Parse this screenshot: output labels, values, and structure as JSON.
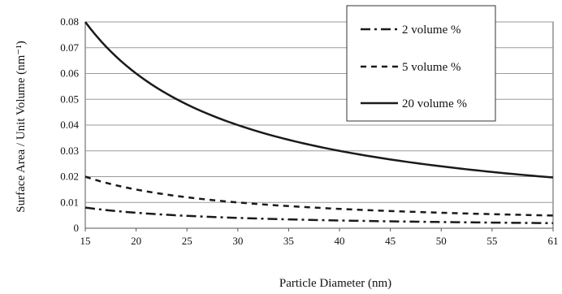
{
  "chart_data": {
    "type": "line",
    "xlabel": "Particle Diameter (nm)",
    "ylabel": "Surface Area / Unit Volume (nm⁻¹)",
    "x_ticks": [
      "15",
      "20",
      "25",
      "30",
      "35",
      "40",
      "45",
      "50",
      "55",
      "61"
    ],
    "y_ticks": [
      "0",
      "0.01",
      "0.02",
      "0.03",
      "0.04",
      "0.05",
      "0.06",
      "0.07",
      "0.08"
    ],
    "xlim": [
      15,
      61
    ],
    "ylim": [
      0,
      0.08
    ],
    "grid": "horizontal",
    "legend_position": "top-right",
    "x": [
      15,
      20,
      25,
      30,
      35,
      40,
      45,
      50,
      55,
      61
    ],
    "series": [
      {
        "name": "2 volume %",
        "style": "dash-dot",
        "values": [
          0.008,
          0.006,
          0.0048,
          0.004,
          0.00343,
          0.003,
          0.00267,
          0.0024,
          0.00218,
          0.00197
        ]
      },
      {
        "name": "5 volume %",
        "style": "dashed",
        "values": [
          0.02,
          0.015,
          0.012,
          0.01,
          0.00857,
          0.0075,
          0.00667,
          0.006,
          0.00545,
          0.00492
        ]
      },
      {
        "name": "20 volume %",
        "style": "solid",
        "values": [
          0.08,
          0.06,
          0.048,
          0.04,
          0.0343,
          0.03,
          0.0267,
          0.024,
          0.0218,
          0.0197
        ]
      }
    ]
  }
}
